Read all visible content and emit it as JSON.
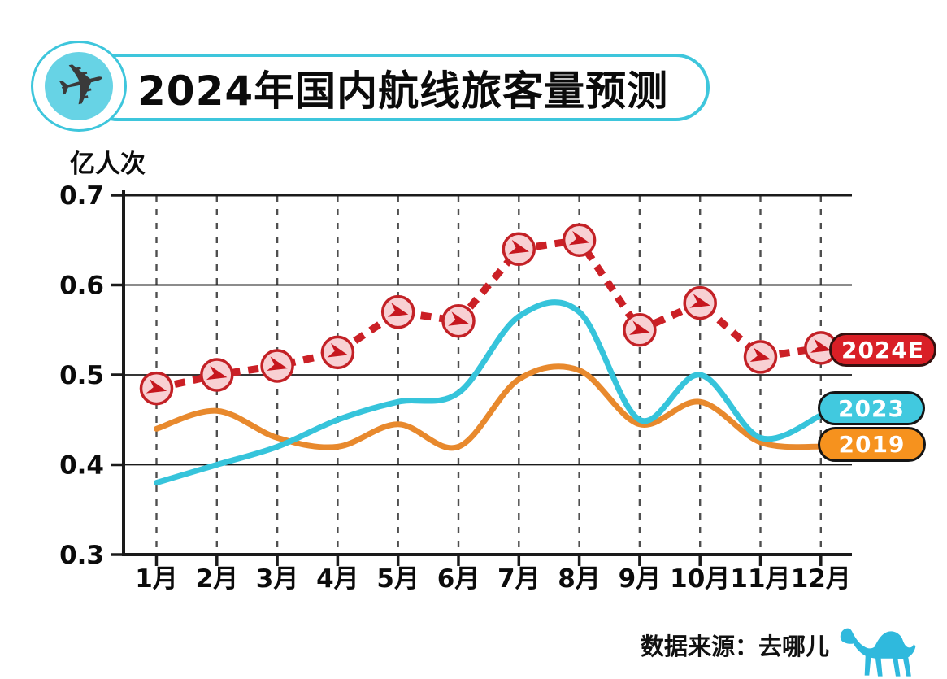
{
  "title": {
    "text": "2024年国内航线旅客量预测"
  },
  "unit_label": "亿人次",
  "source": {
    "label": "数据来源：去哪儿"
  },
  "legend": [
    {
      "label": "2024E",
      "color": "#D91F26"
    },
    {
      "label": "2023",
      "color": "#41C9DF"
    },
    {
      "label": "2019",
      "color": "#F6921E"
    }
  ],
  "icons": {
    "title_logo": "airplane-icon",
    "marker": "paper-plane-icon",
    "source_logo": "camel-icon"
  },
  "colors": {
    "title_border": "#3EC6DC",
    "logo_inner": "#67D3E5",
    "plane_dark": "#3A3A3A",
    "red_line": "#CB2026",
    "marker_fill": "#F8D0D3",
    "marker_stroke": "#C32126",
    "marker_glyph": "#C6161E",
    "cyan_line": "#36C4DB",
    "orange_line": "#E8892D",
    "legend_red": "#D91F26",
    "legend_cyan": "#41C9DF",
    "legend_orange": "#F6921E",
    "axis": "#1a1a1a",
    "grid_dash": "#4f4f4f",
    "camel": "#2FB9DD"
  },
  "chart_data": {
    "type": "line",
    "title": "2024年国内航线旅客量预测",
    "ylabel": "亿人次",
    "categories": [
      "1月",
      "2月",
      "3月",
      "4月",
      "5月",
      "6月",
      "7月",
      "8月",
      "9月",
      "10月",
      "11月",
      "12月"
    ],
    "series": [
      {
        "name": "2024E",
        "style": "dashed-with-plane-markers",
        "color": "#CB2026",
        "values": [
          0.485,
          0.5,
          0.51,
          0.525,
          0.57,
          0.56,
          0.64,
          0.65,
          0.55,
          0.58,
          0.52,
          0.53
        ]
      },
      {
        "name": "2023",
        "style": "solid-smooth",
        "color": "#36C4DB",
        "values": [
          0.38,
          0.4,
          0.42,
          0.45,
          0.47,
          0.48,
          0.565,
          0.57,
          0.45,
          0.5,
          0.43,
          0.455
        ]
      },
      {
        "name": "2019",
        "style": "solid-smooth",
        "color": "#E8892D",
        "values": [
          0.44,
          0.46,
          0.43,
          0.42,
          0.445,
          0.42,
          0.495,
          0.505,
          0.445,
          0.47,
          0.425,
          0.42
        ]
      }
    ],
    "yticks": [
      "0.7",
      "0.6",
      "0.5",
      "0.4",
      "0.3"
    ],
    "ylim": [
      0.3,
      0.7
    ],
    "grid": {
      "horizontal_solid": true,
      "vertical_dashed": true
    },
    "legend_position": "right"
  }
}
